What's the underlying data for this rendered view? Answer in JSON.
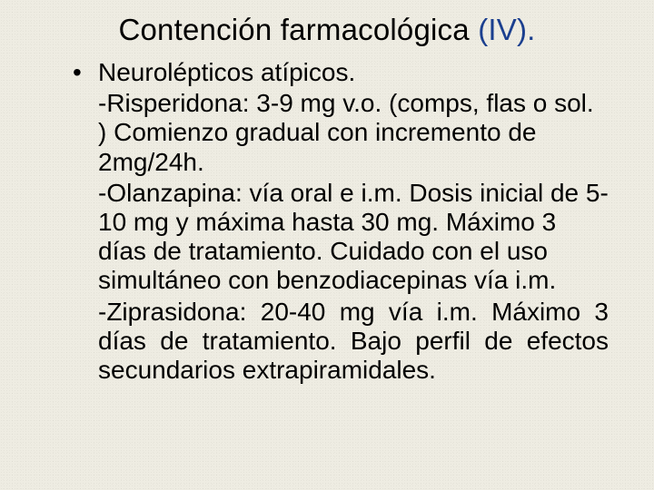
{
  "slide": {
    "background_color": "#eeece2",
    "text_color": "#000000",
    "accent_color": "#1b3f8f",
    "title_plain": "Contención farmacológica ",
    "title_accent": "(IV).",
    "title_fontsize_pt": 33,
    "body_fontsize_pt": 28,
    "font_family": "Arial",
    "bullet": "Neurolépticos atípicos.",
    "para1": "-Risperidona: 3-9 mg v.o. (comps, flas o sol. ) Comienzo gradual con incremento de 2mg/24h.",
    "para2": "-Olanzapina: vía oral e i.m. Dosis inicial de 5-10 mg y máxima hasta 30 mg. Máximo 3 días de tratamiento. Cuidado con el uso simultáneo con benzodiacepinas vía i.m.",
    "para3": " -Ziprasidona: 20-40 mg vía i.m. Máximo 3 días de tratamiento. Bajo perfil de efectos secundarios extrapiramidales."
  }
}
